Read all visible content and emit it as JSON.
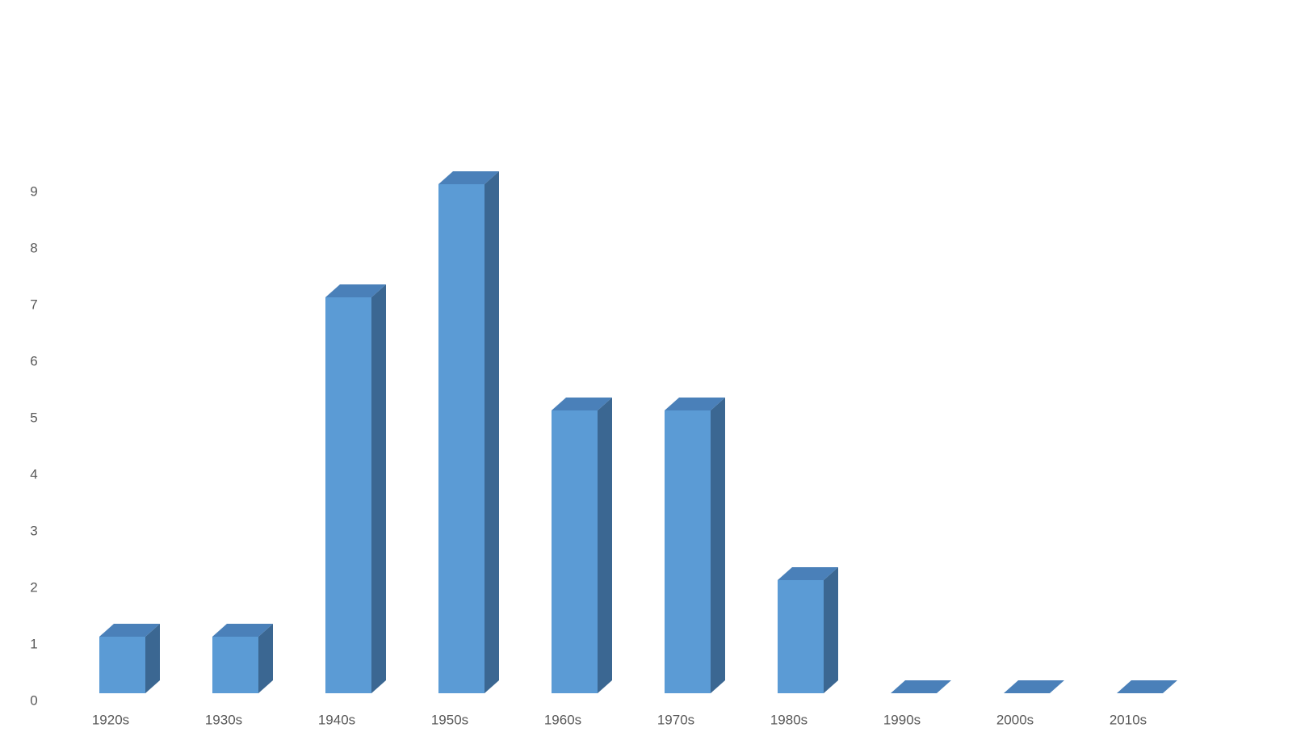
{
  "chart_data": {
    "type": "bar3d",
    "categories": [
      "1920s",
      "1930s",
      "1940s",
      "1950s",
      "1960s",
      "1970s",
      "1980s",
      "1990s",
      "2000s",
      "2010s"
    ],
    "values": [
      1,
      1,
      7,
      9,
      5,
      5,
      2,
      0,
      0,
      0
    ],
    "color": "#5b9bd5",
    "side_color": "#3b6792",
    "top_color": "#4a80b9",
    "ylim": [
      0,
      12
    ],
    "yticks": [
      0,
      1,
      2,
      3,
      4,
      5,
      6,
      7,
      8,
      9
    ],
    "grid": false
  }
}
